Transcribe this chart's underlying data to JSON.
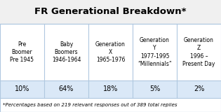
{
  "title": "FR Generational Breakdown*",
  "columns": [
    "Pre\nBoomer\nPre 1945",
    "Baby\nBoomers\n1946-1964",
    "Generation\nX\n1965-1976",
    "Generation\nY\n1977-1995\n“Millennials”",
    "Generation\nZ\n1996 –\nPresent Day"
  ],
  "values": [
    "10%",
    "64%",
    "18%",
    "5%",
    "2%"
  ],
  "footnote": "*Percentages based on 219 relevant responses out of 389 total replies",
  "header_bg": "#ffffff",
  "value_bg": "#dae8f7",
  "border_color": "#b0c8e0",
  "title_fontsize": 9.5,
  "header_fontsize": 5.5,
  "value_fontsize": 7.0,
  "footnote_fontsize": 5.0,
  "bg_color": "#f0f0f0"
}
